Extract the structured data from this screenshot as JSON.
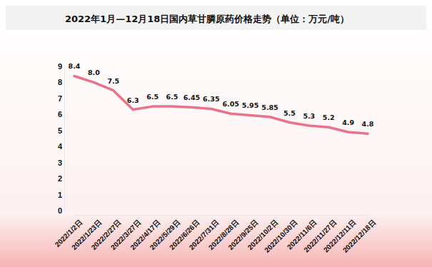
{
  "chart_data": {
    "type": "line",
    "title": "2022年1月—12月18日国内草甘膦原药价格走势（单位：万元/吨）",
    "categories": [
      "2022/1/2日",
      "2022/1/23日",
      "2022/2/27日",
      "2022/3/27日",
      "2022/4/17日",
      "2022/5/29日",
      "2022/6/26日",
      "2022/7/31日",
      "2022/8/28日",
      "2022/9/25日",
      "2022/10/2日",
      "2022/10/30日",
      "2022/11/6日",
      "2022/11/27日",
      "2022/12/11日",
      "2022/12/18日"
    ],
    "values": [
      8.4,
      8.0,
      7.5,
      6.3,
      6.5,
      6.5,
      6.45,
      6.35,
      6.05,
      5.95,
      5.85,
      5.5,
      5.3,
      5.2,
      4.9,
      4.8
    ],
    "value_labels": [
      "8.4",
      "8.0",
      "7.5",
      "6.3",
      "6.5",
      "6.5",
      "6.45",
      "6.35",
      "6.05",
      "5.95",
      "5.85",
      "5.5",
      "5.3",
      "5.2",
      "4.9",
      "4.8"
    ],
    "color": "#e8738b",
    "ylim": [
      0,
      9
    ],
    "yticks": [
      0,
      1,
      2,
      3,
      4,
      5,
      6,
      7,
      8,
      9
    ],
    "grid": false,
    "data_labels": true
  }
}
